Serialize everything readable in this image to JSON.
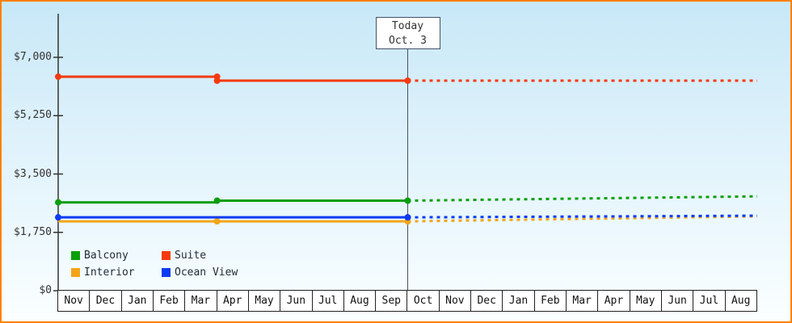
{
  "colors": {
    "frame_border": "#ff8000",
    "axis": "#333333",
    "today_line": "#44506a",
    "plot_bg_top": "#c8e8f7",
    "plot_bg_bottom": "#fbffff"
  },
  "chart_data": {
    "type": "line",
    "title": "",
    "xlabel": "",
    "ylabel": "",
    "ylim": [
      0,
      7000
    ],
    "grid": false,
    "legend_position": "bottom-left",
    "today": {
      "label": "Today",
      "date": "Oct. 3",
      "month_index": 11
    },
    "x_months": [
      "Nov",
      "Dec",
      "Jan",
      "Feb",
      "Mar",
      "Apr",
      "May",
      "Jun",
      "Jul",
      "Aug",
      "Sep",
      "Oct",
      "Nov",
      "Dec",
      "Jan",
      "Feb",
      "Mar",
      "Apr",
      "May",
      "Jun",
      "Jul",
      "Aug"
    ],
    "y_ticks": [
      {
        "label": "$7,000",
        "value": 7000
      },
      {
        "label": "$5,250",
        "value": 5250
      },
      {
        "label": "$3,500",
        "value": 3500
      },
      {
        "label": "$1,750",
        "value": 1750
      },
      {
        "label": "$0",
        "value": 0
      }
    ],
    "series": [
      {
        "name": "Balcony",
        "color": "#0b9e0b",
        "solid_points": [
          [
            0,
            2650
          ],
          [
            5,
            2650
          ],
          [
            5,
            2700
          ],
          [
            11,
            2700
          ]
        ],
        "dotted_points": [
          [
            11,
            2700
          ],
          [
            22,
            2830
          ]
        ],
        "markers": [
          [
            0,
            2650
          ],
          [
            5,
            2700
          ],
          [
            11,
            2700
          ]
        ]
      },
      {
        "name": "Suite",
        "color": "#f43a0c",
        "solid_points": [
          [
            0,
            6420
          ],
          [
            5,
            6420
          ],
          [
            5,
            6300
          ],
          [
            11,
            6300
          ]
        ],
        "dotted_points": [
          [
            11,
            6300
          ],
          [
            22,
            6300
          ]
        ],
        "markers": [
          [
            0,
            6420
          ],
          [
            5,
            6420
          ],
          [
            5,
            6300
          ],
          [
            11,
            6300
          ]
        ]
      },
      {
        "name": "Interior",
        "color": "#f2a51a",
        "solid_points": [
          [
            0,
            2080
          ],
          [
            11,
            2080
          ]
        ],
        "dotted_points": [
          [
            11,
            2080
          ],
          [
            22,
            2230
          ]
        ],
        "markers": [
          [
            5,
            2080
          ],
          [
            11,
            2080
          ]
        ]
      },
      {
        "name": "Ocean View",
        "color": "#0b3bf2",
        "solid_points": [
          [
            0,
            2200
          ],
          [
            11,
            2200
          ]
        ],
        "dotted_points": [
          [
            11,
            2200
          ],
          [
            22,
            2250
          ]
        ],
        "markers": [
          [
            0,
            2200
          ],
          [
            11,
            2200
          ]
        ]
      }
    ]
  }
}
